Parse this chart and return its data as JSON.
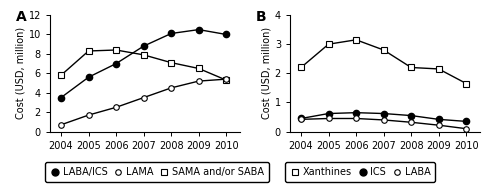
{
  "years": [
    2004,
    2005,
    2006,
    2007,
    2008,
    2009,
    2010
  ],
  "panel_A": {
    "LABA_ICS": [
      3.5,
      5.6,
      7.0,
      8.8,
      10.1,
      10.5,
      10.0
    ],
    "LAMA": [
      0.7,
      1.7,
      2.5,
      3.5,
      4.5,
      5.2,
      5.4
    ],
    "SAMA_SABA": [
      5.8,
      8.3,
      8.4,
      7.9,
      7.1,
      6.5,
      5.3
    ]
  },
  "panel_B": {
    "Xanthines": [
      2.2,
      3.0,
      3.15,
      2.8,
      2.2,
      2.15,
      1.65
    ],
    "ICS": [
      0.45,
      0.62,
      0.65,
      0.62,
      0.55,
      0.42,
      0.35
    ],
    "LABA": [
      0.42,
      0.45,
      0.45,
      0.4,
      0.32,
      0.22,
      0.1
    ]
  },
  "ylim_A": [
    0,
    12
  ],
  "ylim_B": [
    0,
    4
  ],
  "yticks_A": [
    0,
    2,
    4,
    6,
    8,
    10,
    12
  ],
  "yticks_B": [
    0,
    1,
    2,
    3,
    4
  ],
  "ylabel": "Cost (USD, million)",
  "background_color": "#ffffff",
  "tick_fontsize": 7,
  "label_fontsize": 7,
  "legend_fontsize": 7
}
